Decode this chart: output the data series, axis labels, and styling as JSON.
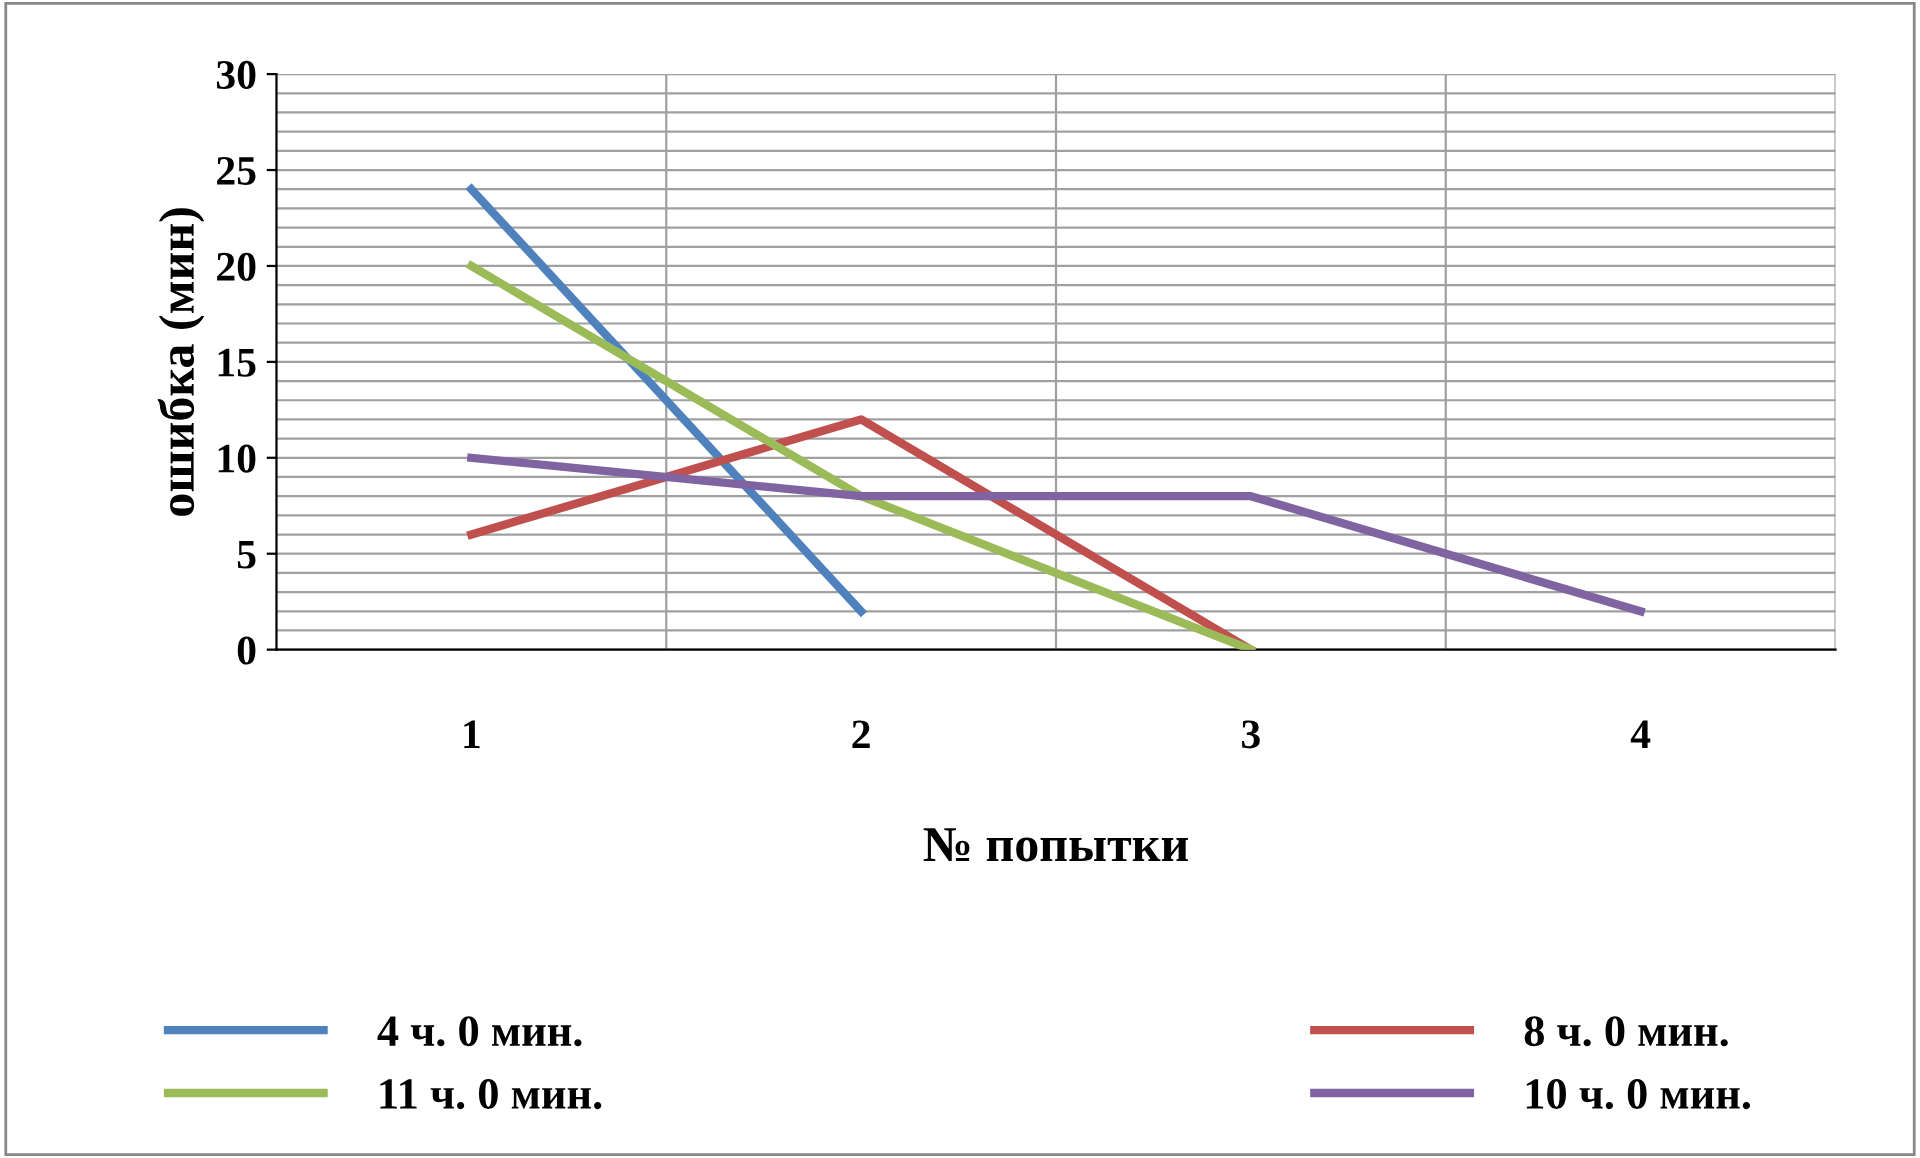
{
  "chart_data": {
    "type": "line",
    "xlabel": "№ попытки",
    "ylabel": "ошибка (мин)",
    "categories": [
      "1",
      "2",
      "3",
      "4"
    ],
    "series": [
      {
        "name": "4 ч. 0 мин.",
        "color": "#4f81bd",
        "values": [
          24,
          2,
          null,
          null
        ]
      },
      {
        "name": "8 ч. 0 мин.",
        "color": "#c0504d",
        "values": [
          6,
          12,
          0,
          null
        ]
      },
      {
        "name": "11 ч. 0 мин.",
        "color": "#9bbb59",
        "values": [
          20,
          8,
          0,
          null
        ]
      },
      {
        "name": "10 ч. 0 мин.",
        "color": "#8064a2",
        "values": [
          10,
          8,
          8,
          2
        ]
      }
    ],
    "ylim": [
      0,
      30
    ],
    "yticks": [
      0,
      5,
      10,
      15,
      20,
      25,
      30
    ],
    "grid": true,
    "legend": "bottom",
    "marker": "none",
    "line_style": "solid"
  }
}
